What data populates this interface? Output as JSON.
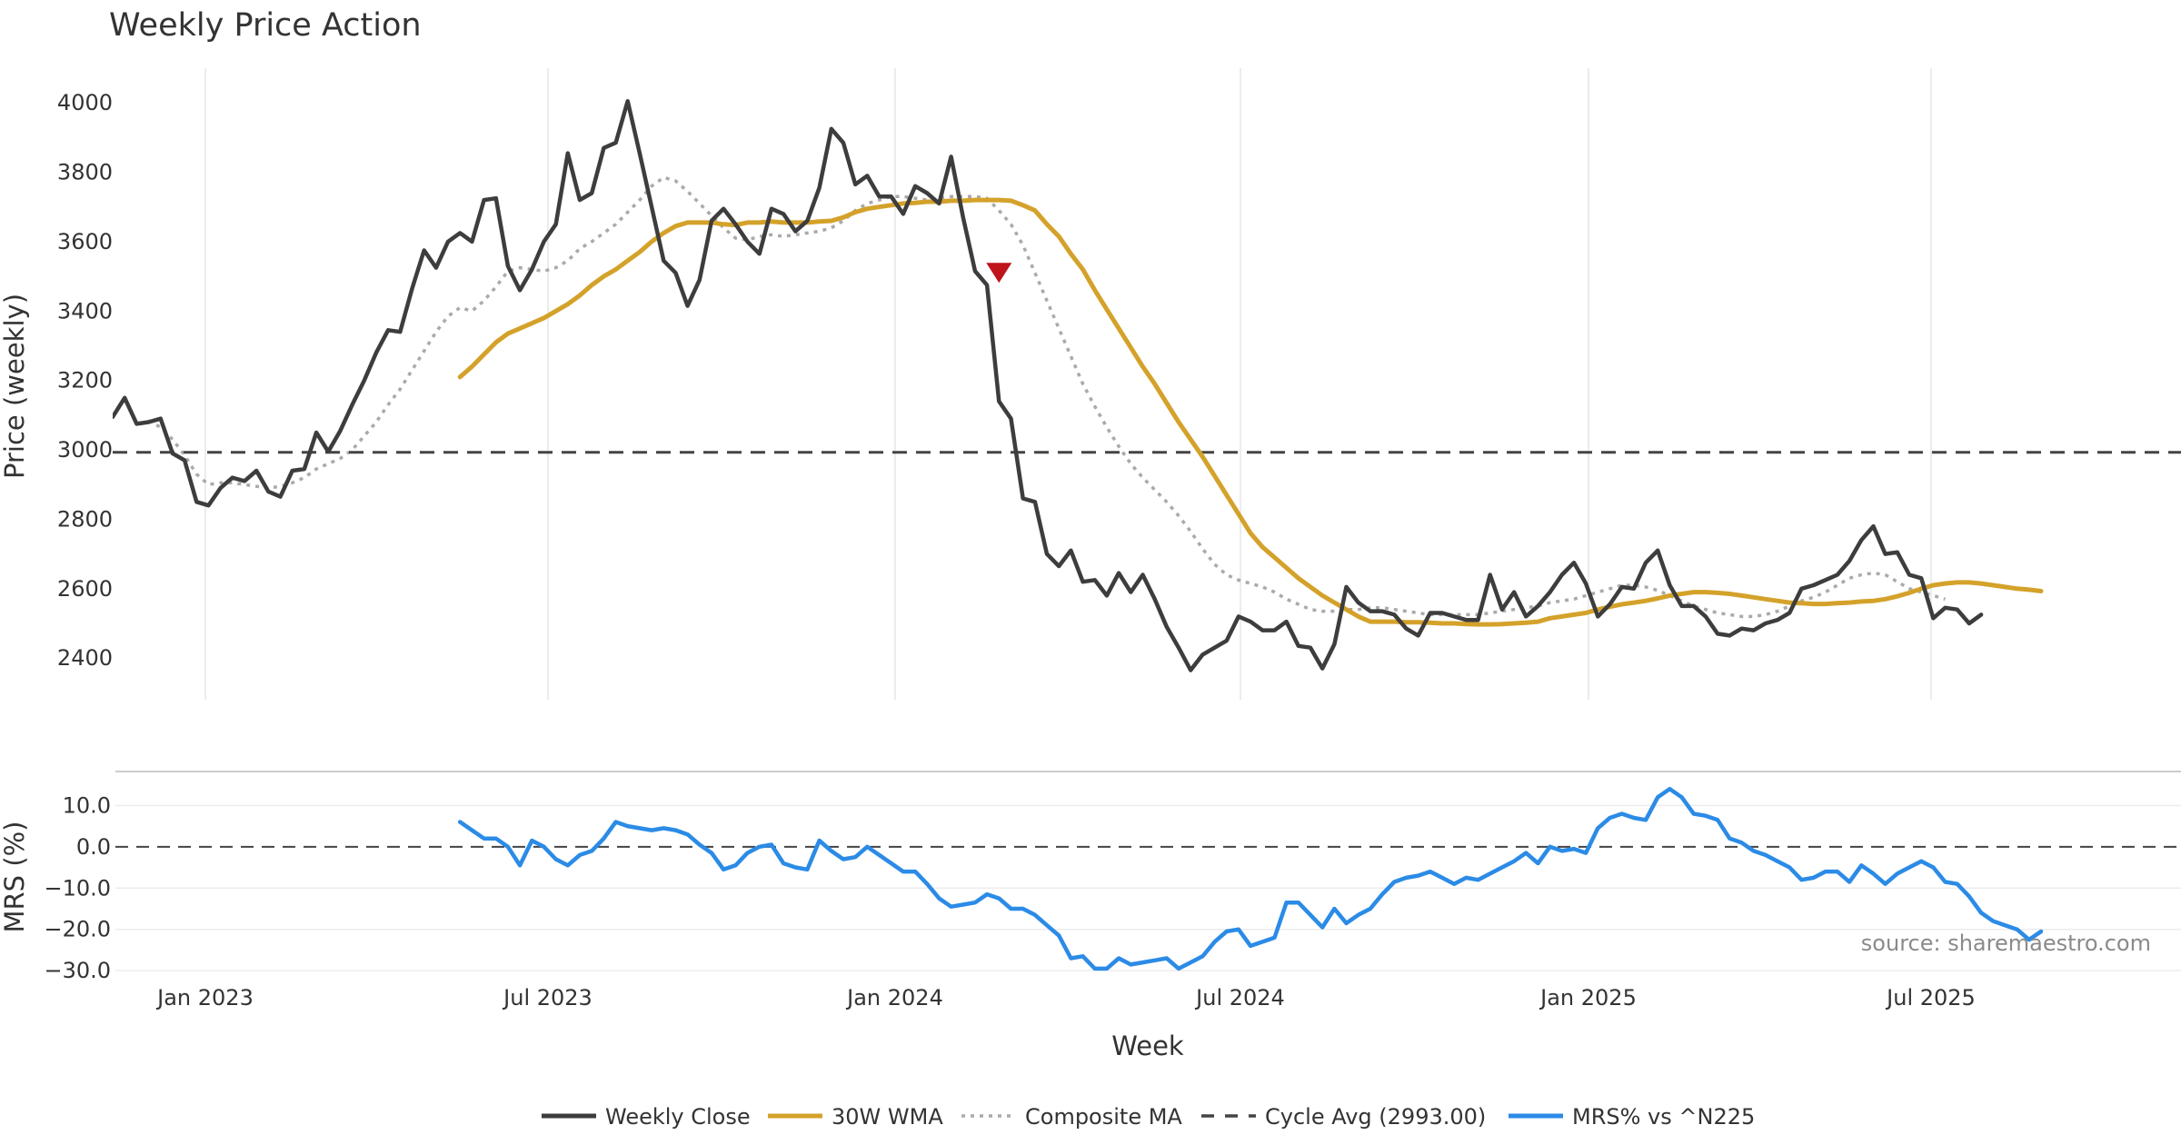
{
  "chart_data": {
    "type": "line",
    "title": "Weekly Price Action",
    "xlabel": "Week",
    "x_ticks": [
      "Jan 2023",
      "Jul 2023",
      "Jan 2024",
      "Jul 2024",
      "Jan 2025",
      "Jul 2025"
    ],
    "price_panel": {
      "ylabel": "Price (weekly)",
      "ylim": [
        2280,
        4100
      ],
      "y_ticks": [
        "2400",
        "2600",
        "2800",
        "3000",
        "3200",
        "3400",
        "3600",
        "3800",
        "4000"
      ],
      "grid": "vertical",
      "series": [
        {
          "name": "Weekly Close",
          "color": "#3d3d3d",
          "style": "solid",
          "start_week": 0,
          "values": [
            3095,
            3150,
            3075,
            3080,
            3090,
            2990,
            2970,
            2850,
            2840,
            2890,
            2920,
            2910,
            2940,
            2880,
            2865,
            2940,
            2945,
            3050,
            2995,
            3055,
            3130,
            3200,
            3280,
            3345,
            3340,
            3465,
            3575,
            3525,
            3600,
            3625,
            3600,
            3720,
            3725,
            3530,
            3460,
            3520,
            3600,
            3650,
            3855,
            3720,
            3740,
            3870,
            3885,
            4005,
            3855,
            3700,
            3545,
            3510,
            3415,
            3490,
            3660,
            3695,
            3650,
            3600,
            3565,
            3695,
            3680,
            3630,
            3660,
            3755,
            3925,
            3885,
            3765,
            3790,
            3730,
            3730,
            3680,
            3760,
            3740,
            3710,
            3845,
            3670,
            3515,
            3475,
            3140,
            3090,
            2860,
            2850,
            2700,
            2665,
            2710,
            2620,
            2625,
            2580,
            2645,
            2590,
            2640,
            2570,
            2490,
            2430,
            2365,
            2410,
            2430,
            2450,
            2520,
            2505,
            2480,
            2480,
            2505,
            2435,
            2430,
            2370,
            2440,
            2605,
            2560,
            2535,
            2535,
            2525,
            2485,
            2465,
            2530,
            2530,
            2520,
            2510,
            2510,
            2640,
            2540,
            2590,
            2520,
            2550,
            2590,
            2640,
            2675,
            2615,
            2520,
            2555,
            2605,
            2600,
            2675,
            2710,
            2610,
            2550,
            2550,
            2520,
            2470,
            2465,
            2485,
            2480,
            2500,
            2510,
            2530,
            2600,
            2610,
            2625,
            2640,
            2680,
            2740,
            2780,
            2700,
            2705,
            2640,
            2630,
            2515,
            2545,
            2540,
            2500,
            2525
          ]
        },
        {
          "name": "30W WMA",
          "color": "#d4a22a",
          "style": "solid",
          "start_week": 29,
          "values": [
            3210,
            3240,
            3275,
            3310,
            3335,
            3350,
            3365,
            3380,
            3400,
            3420,
            3445,
            3475,
            3500,
            3520,
            3545,
            3570,
            3600,
            3625,
            3645,
            3655,
            3655,
            3655,
            3650,
            3648,
            3655,
            3655,
            3658,
            3655,
            3655,
            3655,
            3658,
            3660,
            3670,
            3685,
            3695,
            3700,
            3705,
            3710,
            3712,
            3715,
            3715,
            3718,
            3718,
            3720,
            3720,
            3720,
            3718,
            3705,
            3690,
            3650,
            3615,
            3565,
            3520,
            3460,
            3405,
            3350,
            3295,
            3240,
            3190,
            3135,
            3080,
            3030,
            2980,
            2925,
            2870,
            2815,
            2760,
            2720,
            2690,
            2660,
            2630,
            2605,
            2580,
            2560,
            2540,
            2520,
            2505,
            2505,
            2505,
            2503,
            2503,
            2502,
            2500,
            2500,
            2498,
            2497,
            2497,
            2498,
            2500,
            2502,
            2505,
            2515,
            2520,
            2525,
            2530,
            2540,
            2548,
            2555,
            2560,
            2565,
            2572,
            2580,
            2585,
            2590,
            2590,
            2588,
            2585,
            2580,
            2575,
            2570,
            2565,
            2560,
            2558,
            2556,
            2556,
            2558,
            2560,
            2563,
            2565,
            2570,
            2578,
            2588,
            2600,
            2610,
            2615,
            2618,
            2618,
            2615,
            2610,
            2605,
            2600,
            2597,
            2593
          ]
        },
        {
          "name": "Composite MA",
          "color": "#aaaaaa",
          "style": "dotted",
          "start_week": 3,
          "values": [
            3085,
            3065,
            3030,
            2985,
            2930,
            2900,
            2905,
            2905,
            2900,
            2895,
            2890,
            2895,
            2905,
            2920,
            2945,
            2960,
            2975,
            3000,
            3040,
            3080,
            3130,
            3175,
            3230,
            3285,
            3340,
            3385,
            3410,
            3400,
            3430,
            3470,
            3515,
            3525,
            3520,
            3515,
            3525,
            3545,
            3580,
            3600,
            3625,
            3650,
            3685,
            3720,
            3760,
            3785,
            3775,
            3745,
            3710,
            3675,
            3640,
            3610,
            3605,
            3615,
            3620,
            3615,
            3620,
            3625,
            3630,
            3640,
            3660,
            3690,
            3710,
            3720,
            3730,
            3730,
            3725,
            3720,
            3725,
            3730,
            3730,
            3730,
            3725,
            3690,
            3650,
            3590,
            3510,
            3430,
            3350,
            3270,
            3190,
            3125,
            3065,
            3010,
            2960,
            2920,
            2885,
            2850,
            2810,
            2765,
            2715,
            2670,
            2640,
            2625,
            2615,
            2605,
            2590,
            2570,
            2555,
            2540,
            2535,
            2535,
            2540,
            2540,
            2545,
            2545,
            2540,
            2535,
            2530,
            2525,
            2525,
            2525,
            2525,
            2525,
            2530,
            2535,
            2540,
            2545,
            2550,
            2560,
            2565,
            2570,
            2580,
            2590,
            2600,
            2610,
            2610,
            2605,
            2595,
            2580,
            2565,
            2550,
            2540,
            2530,
            2525,
            2520,
            2520,
            2525,
            2535,
            2550,
            2565,
            2575,
            2590,
            2610,
            2630,
            2640,
            2645,
            2640,
            2620,
            2600,
            2590,
            2580,
            2570
          ]
        },
        {
          "name": "Cycle Avg (2993.00)",
          "color": "#444444",
          "style": "dashed",
          "value": 2993.0
        }
      ],
      "annotations": [
        {
          "type": "sell-marker",
          "shape": "down-triangle",
          "color": "#c0141c",
          "week": 74,
          "value": 3510
        }
      ]
    },
    "mrs_panel": {
      "ylabel": "MRS (%)",
      "ylim": [
        -31.5,
        18
      ],
      "y_ticks": [
        "10.0",
        "0.0",
        "−10.0",
        "−20.0",
        "−30.0"
      ],
      "reference_line": 0.0,
      "series": [
        {
          "name": "MRS% vs ^N225",
          "color": "#2b8be6",
          "style": "solid",
          "start_week": 29,
          "values": [
            6,
            4,
            2,
            2,
            0,
            -4.5,
            1.5,
            0,
            -3,
            -4.5,
            -2,
            -1,
            2,
            6,
            5,
            4.5,
            4,
            4.5,
            4,
            3,
            0.5,
            -1.5,
            -5.5,
            -4.5,
            -1.5,
            0,
            0.5,
            -4,
            -5,
            -5.5,
            1.5,
            -1,
            -3,
            -2.5,
            0,
            -2,
            -4,
            -6,
            -6,
            -9,
            -12.5,
            -14.5,
            -14,
            -13.5,
            -11.5,
            -12.5,
            -15,
            -15,
            -16.5,
            -19,
            -21.5,
            -27,
            -26.5,
            -29.5,
            -29.5,
            -27,
            -28.5,
            -28,
            -27.5,
            -27,
            -29.5,
            -28,
            -26.5,
            -23,
            -20.5,
            -20,
            -24,
            -23,
            -22,
            -13.5,
            -13.5,
            -16.5,
            -19.5,
            -15,
            -18.5,
            -16.5,
            -15,
            -11.5,
            -8.5,
            -7.5,
            -7,
            -6,
            -7.5,
            -9,
            -7.5,
            -8,
            -6.5,
            -5,
            -3.5,
            -1.5,
            -4,
            0,
            -1,
            -0.5,
            -1.5,
            4.5,
            7,
            8,
            7,
            6.5,
            12,
            14,
            12,
            8,
            7.5,
            6.5,
            2,
            1,
            -1,
            -2,
            -3.5,
            -5,
            -8,
            -7.5,
            -6,
            -6,
            -8.5,
            -4.5,
            -6.5,
            -9,
            -6.5,
            -5,
            -3.5,
            -5,
            -8.5,
            -9,
            -12,
            -16,
            -18,
            -19,
            -20,
            -22.5,
            -20.5
          ]
        }
      ]
    },
    "legend": {
      "position": "bottom-center",
      "entries": [
        {
          "label": "Weekly Close",
          "color": "#3d3d3d",
          "style": "solid"
        },
        {
          "label": "30W WMA",
          "color": "#d4a22a",
          "style": "solid"
        },
        {
          "label": "Composite MA",
          "color": "#aaaaaa",
          "style": "dotted"
        },
        {
          "label": "Cycle Avg (2993.00)",
          "color": "#444444",
          "style": "dashed"
        },
        {
          "label": "MRS% vs ^N225",
          "color": "#2b8be6",
          "style": "solid"
        }
      ]
    },
    "source_note": "source: sharemaestro.com"
  }
}
